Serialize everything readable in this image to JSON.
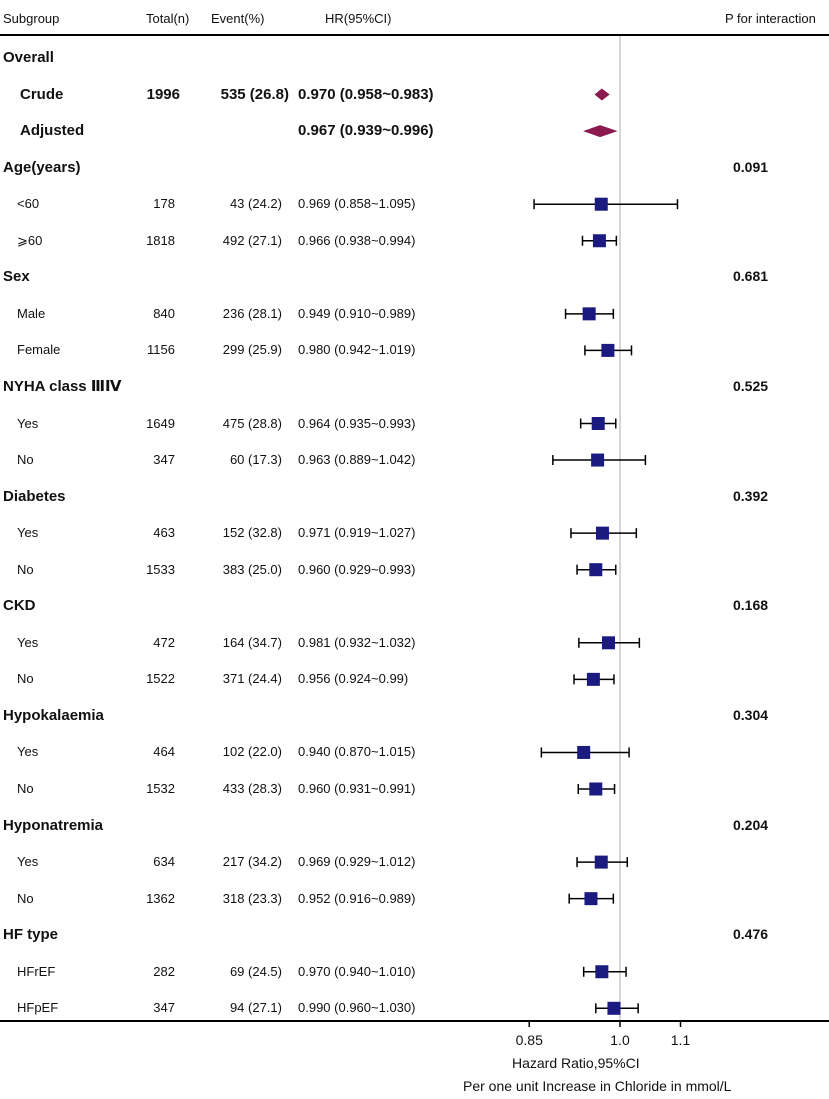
{
  "header": {
    "subgroup": "Subgroup",
    "total": "Total(n)",
    "event": "Event(%)",
    "hr": "HR(95%CI)",
    "p_interaction": "P for interaction"
  },
  "colors": {
    "square": "#1a1a80",
    "diamond": "#8b1a4f",
    "reference_line": "#c8c8c8",
    "whisker": "#000000"
  },
  "chart_data": {
    "type": "forest",
    "xlabel": "Hazard Ratio,95%CI",
    "xlabel2": "Per one unit Increase in Chloride in mmol/L",
    "x_ticks": [
      0.85,
      1.0,
      1.1
    ],
    "x_tick_labels": [
      "0.85",
      "1.0",
      "1.1"
    ],
    "reference": 1.0,
    "rows": [
      {
        "kind": "section",
        "label": "Overall",
        "p": ""
      },
      {
        "kind": "diamond",
        "label": "Crude",
        "total": "1996",
        "event": "535 (26.8)",
        "hr_text": "0.970 (0.958~0.983)",
        "hr": 0.97,
        "lo": 0.958,
        "hi": 0.983
      },
      {
        "kind": "diamond",
        "label": "Adjusted",
        "total": "",
        "event": "",
        "hr_text": "0.967 (0.939~0.996)",
        "hr": 0.967,
        "lo": 0.939,
        "hi": 0.996
      },
      {
        "kind": "section",
        "label": "Age(years)",
        "p": "0.091"
      },
      {
        "kind": "row",
        "label": "<60",
        "total": "178",
        "event": "43 (24.2)",
        "hr_text": "0.969 (0.858~1.095)",
        "hr": 0.969,
        "lo": 0.858,
        "hi": 1.095
      },
      {
        "kind": "row",
        "label": "⩾60",
        "total": "1818",
        "event": "492 (27.1)",
        "hr_text": "0.966 (0.938~0.994)",
        "hr": 0.966,
        "lo": 0.938,
        "hi": 0.994
      },
      {
        "kind": "section",
        "label": "Sex",
        "p": "0.681"
      },
      {
        "kind": "row",
        "label": "Male",
        "total": "840",
        "event": "236 (28.1)",
        "hr_text": "0.949 (0.910~0.989)",
        "hr": 0.949,
        "lo": 0.91,
        "hi": 0.989
      },
      {
        "kind": "row",
        "label": "Female",
        "total": "1156",
        "event": "299 (25.9)",
        "hr_text": "0.980 (0.942~1.019)",
        "hr": 0.98,
        "lo": 0.942,
        "hi": 1.019
      },
      {
        "kind": "section",
        "label": "NYHA class ⅢⅣ",
        "p": "0.525"
      },
      {
        "kind": "row",
        "label": "Yes",
        "total": "1649",
        "event": "475 (28.8)",
        "hr_text": "0.964 (0.935~0.993)",
        "hr": 0.964,
        "lo": 0.935,
        "hi": 0.993
      },
      {
        "kind": "row",
        "label": "No",
        "total": "347",
        "event": "60 (17.3)",
        "hr_text": "0.963 (0.889~1.042)",
        "hr": 0.963,
        "lo": 0.889,
        "hi": 1.042
      },
      {
        "kind": "section",
        "label": "Diabetes",
        "p": "0.392"
      },
      {
        "kind": "row",
        "label": "Yes",
        "total": "463",
        "event": "152 (32.8)",
        "hr_text": "0.971 (0.919~1.027)",
        "hr": 0.971,
        "lo": 0.919,
        "hi": 1.027
      },
      {
        "kind": "row",
        "label": "No",
        "total": "1533",
        "event": "383 (25.0)",
        "hr_text": "0.960 (0.929~0.993)",
        "hr": 0.96,
        "lo": 0.929,
        "hi": 0.993
      },
      {
        "kind": "section",
        "label": "CKD",
        "p": "0.168"
      },
      {
        "kind": "row",
        "label": "Yes",
        "total": "472",
        "event": "164 (34.7)",
        "hr_text": "0.981 (0.932~1.032)",
        "hr": 0.981,
        "lo": 0.932,
        "hi": 1.032
      },
      {
        "kind": "row",
        "label": "No",
        "total": "1522",
        "event": "371 (24.4)",
        "hr_text": "0.956 (0.924~0.99)",
        "hr": 0.956,
        "lo": 0.924,
        "hi": 0.99
      },
      {
        "kind": "section",
        "label": "Hypokalaemia",
        "p": "0.304"
      },
      {
        "kind": "row",
        "label": "Yes",
        "total": "464",
        "event": "102 (22.0)",
        "hr_text": "0.940 (0.870~1.015)",
        "hr": 0.94,
        "lo": 0.87,
        "hi": 1.015
      },
      {
        "kind": "row",
        "label": "No",
        "total": "1532",
        "event": "433 (28.3)",
        "hr_text": "0.960 (0.931~0.991)",
        "hr": 0.96,
        "lo": 0.931,
        "hi": 0.991
      },
      {
        "kind": "section",
        "label": "Hyponatremia",
        "p": "0.204"
      },
      {
        "kind": "row",
        "label": "Yes",
        "total": "634",
        "event": "217 (34.2)",
        "hr_text": "0.969 (0.929~1.012)",
        "hr": 0.969,
        "lo": 0.929,
        "hi": 1.012
      },
      {
        "kind": "row",
        "label": "No",
        "total": "1362",
        "event": "318 (23.3)",
        "hr_text": "0.952 (0.916~0.989)",
        "hr": 0.952,
        "lo": 0.916,
        "hi": 0.989
      },
      {
        "kind": "section",
        "label": "HF type",
        "p": "0.476"
      },
      {
        "kind": "row",
        "label": "HFrEF",
        "total": "282",
        "event": "69 (24.5)",
        "hr_text": "0.970 (0.940~1.010)",
        "hr": 0.97,
        "lo": 0.94,
        "hi": 1.01
      },
      {
        "kind": "row",
        "label": "HFpEF",
        "total": "347",
        "event": "94 (27.1)",
        "hr_text": "0.990 (0.960~1.030)",
        "hr": 0.99,
        "lo": 0.96,
        "hi": 1.03
      }
    ]
  }
}
